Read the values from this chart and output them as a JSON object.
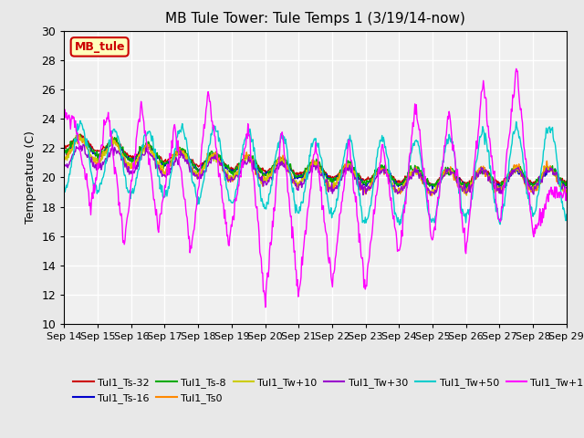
{
  "title": "MB Tule Tower: Tule Temps 1 (3/19/14-now)",
  "ylabel": "Temperature (C)",
  "ylim": [
    10,
    30
  ],
  "yticks": [
    10,
    12,
    14,
    16,
    18,
    20,
    22,
    24,
    26,
    28,
    30
  ],
  "bg_color": "#e8e8e8",
  "plot_bg_color": "#f0f0f0",
  "grid_color": "#ffffff",
  "legend_box_label": "MB_tule",
  "legend_box_facecolor": "#ffffbb",
  "legend_box_edgecolor": "#cc0000",
  "series_colors": {
    "Tul1_Ts-32": "#cc0000",
    "Tul1_Ts-16": "#0000cc",
    "Tul1_Ts-8": "#00aa00",
    "Tul1_Ts0": "#ff8800",
    "Tul1_Tw+10": "#cccc00",
    "Tul1_Tw+30": "#9900cc",
    "Tul1_Tw+50": "#00cccc",
    "Tul1_Tw+100": "#ff00ff"
  },
  "xticklabels": [
    "Sep 14",
    "Sep 15",
    "Sep 16",
    "Sep 17",
    "Sep 18",
    "Sep 19",
    "Sep 20",
    "Sep 21",
    "Sep 22",
    "Sep 23",
    "Sep 24",
    "Sep 25",
    "Sep 26",
    "Sep 27",
    "Sep 28",
    "Sep 29"
  ],
  "num_days": 15,
  "pts_per_day": 48
}
